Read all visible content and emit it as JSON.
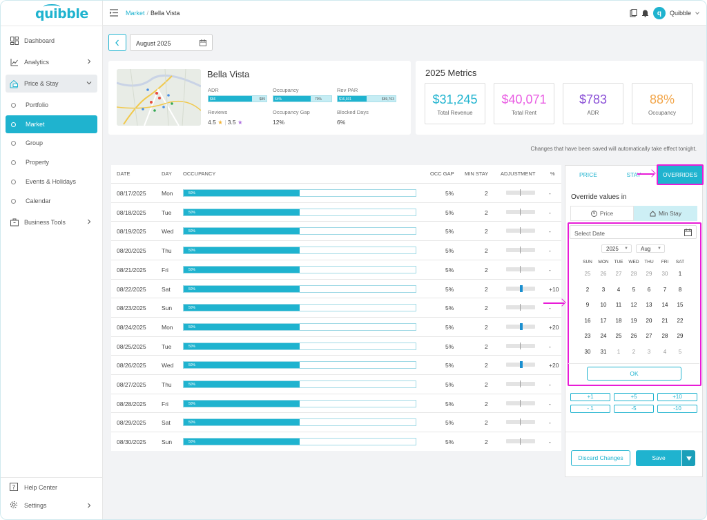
{
  "app": {
    "logo": "quibble"
  },
  "sidebar": {
    "items": [
      {
        "label": "Dashboard",
        "icon": "dashboard-icon"
      },
      {
        "label": "Analytics",
        "icon": "chart-icon"
      },
      {
        "label": "Price & Stay",
        "icon": "house-tag-icon"
      },
      {
        "label": "Portfolio"
      },
      {
        "label": "Market"
      },
      {
        "label": "Group"
      },
      {
        "label": "Property"
      },
      {
        "label": "Events & Holidays"
      },
      {
        "label": "Calendar"
      },
      {
        "label": "Business Tools",
        "icon": "briefcase-icon"
      }
    ],
    "help": "Help Center",
    "settings": "Settings"
  },
  "header": {
    "crumb_parent": "Market",
    "crumb_current": "Bella Vista",
    "user": "Quibble",
    "avatar_letter": "q"
  },
  "filters": {
    "month": "August 2025"
  },
  "property": {
    "name": "Bella Vista",
    "adr_label": "ADR",
    "adr_left": "$66",
    "adr_right": "$89",
    "adr_fill": 0.75,
    "occ_label": "Occupancy",
    "occ_left": "64%",
    "occ_right": "70%",
    "occ_fill": 0.64,
    "revpar_label": "Rev PAR",
    "revpar_left": "$16,931",
    "revpar_right": "$89,763",
    "revpar_fill": 0.5,
    "reviews_label": "Reviews",
    "reviews_a": "4.5",
    "reviews_b": "3.5",
    "gap_label": "Occupancy Gap",
    "gap_value": "12%",
    "blocked_label": "Blocked Days",
    "blocked_value": "6%"
  },
  "metrics": {
    "title": "2025 Metrics",
    "items": [
      {
        "value": "$31,245",
        "label": "Total Revenue",
        "color": "#1fb3cf"
      },
      {
        "value": "$40,071",
        "label": "Total Rent",
        "color": "#e95ce3"
      },
      {
        "value": "$783",
        "label": "ADR",
        "color": "#8a4fd6"
      },
      {
        "value": "88%",
        "label": "Occupancy",
        "color": "#f2a64b"
      }
    ]
  },
  "note": "Changes that have been saved will automatically take effect tonight.",
  "table": {
    "headers": {
      "date": "DATE",
      "day": "DAY",
      "occupancy": "OCCUPANCY",
      "gap": "OCC GAP",
      "minstay": "MIN STAY",
      "adjustment": "ADJUSTMENT",
      "pct": "%"
    },
    "rows": [
      {
        "date": "08/17/2025",
        "day": "Mon",
        "occ": "50%",
        "occ_fill": 0.5,
        "gap": "5%",
        "min": "2",
        "adj": 0,
        "pct": "-"
      },
      {
        "date": "08/18/2025",
        "day": "Tue",
        "occ": "50%",
        "occ_fill": 0.5,
        "gap": "5%",
        "min": "2",
        "adj": 0,
        "pct": "-"
      },
      {
        "date": "08/19/2025",
        "day": "Wed",
        "occ": "50%",
        "occ_fill": 0.5,
        "gap": "5%",
        "min": "2",
        "adj": 0,
        "pct": "-"
      },
      {
        "date": "08/20/2025",
        "day": "Thu",
        "occ": "50%",
        "occ_fill": 0.5,
        "gap": "5%",
        "min": "2",
        "adj": 0,
        "pct": "-"
      },
      {
        "date": "08/21/2025",
        "day": "Fri",
        "occ": "50%",
        "occ_fill": 0.5,
        "gap": "5%",
        "min": "2",
        "adj": 0,
        "pct": "-"
      },
      {
        "date": "08/22/2025",
        "day": "Sat",
        "occ": "50%",
        "occ_fill": 0.5,
        "gap": "5%",
        "min": "2",
        "adj": 10,
        "pct": "+10"
      },
      {
        "date": "08/23/2025",
        "day": "Sun",
        "occ": "50%",
        "occ_fill": 0.5,
        "gap": "5%",
        "min": "2",
        "adj": 0,
        "pct": "-"
      },
      {
        "date": "08/24/2025",
        "day": "Mon",
        "occ": "50%",
        "occ_fill": 0.5,
        "gap": "5%",
        "min": "2",
        "adj": 20,
        "pct": "+20"
      },
      {
        "date": "08/25/2025",
        "day": "Tue",
        "occ": "50%",
        "occ_fill": 0.5,
        "gap": "5%",
        "min": "2",
        "adj": 0,
        "pct": "-"
      },
      {
        "date": "08/26/2025",
        "day": "Wed",
        "occ": "50%",
        "occ_fill": 0.5,
        "gap": "5%",
        "min": "2",
        "adj": 20,
        "pct": "+20"
      },
      {
        "date": "08/27/2025",
        "day": "Thu",
        "occ": "50%",
        "occ_fill": 0.5,
        "gap": "5%",
        "min": "2",
        "adj": 0,
        "pct": "-"
      },
      {
        "date": "08/28/2025",
        "day": "Fri",
        "occ": "50%",
        "occ_fill": 0.5,
        "gap": "5%",
        "min": "2",
        "adj": 0,
        "pct": "-"
      },
      {
        "date": "08/29/2025",
        "day": "Sat",
        "occ": "50%",
        "occ_fill": 0.5,
        "gap": "5%",
        "min": "2",
        "adj": 0,
        "pct": "-"
      },
      {
        "date": "08/30/2025",
        "day": "Sun",
        "occ": "50%",
        "occ_fill": 0.5,
        "gap": "5%",
        "min": "2",
        "adj": 0,
        "pct": "-"
      }
    ]
  },
  "panel": {
    "tabs": [
      "PRICE",
      "STAY",
      "OVERRIDES"
    ],
    "override_title": "Override values in",
    "seg_price": "Price",
    "seg_minstay": "Min Stay",
    "date_placeholder": "Select Date",
    "year": "2025",
    "month": "Aug",
    "dow": [
      "SUN",
      "MON",
      "TUE",
      "WED",
      "THU",
      "FRI",
      "SAT"
    ],
    "weeks": [
      [
        "25",
        "26",
        "27",
        "28",
        "29",
        "30",
        "1"
      ],
      [
        "2",
        "3",
        "4",
        "5",
        "6",
        "7",
        "8"
      ],
      [
        "9",
        "10",
        "11",
        "12",
        "13",
        "14",
        "15"
      ],
      [
        "16",
        "17",
        "18",
        "19",
        "20",
        "21",
        "22"
      ],
      [
        "23",
        "24",
        "25",
        "26",
        "27",
        "28",
        "29"
      ],
      [
        "30",
        "31",
        "1",
        "2",
        "3",
        "4",
        "5"
      ]
    ],
    "muted": [
      [
        0,
        0
      ],
      [
        0,
        1
      ],
      [
        0,
        2
      ],
      [
        0,
        3
      ],
      [
        0,
        4
      ],
      [
        0,
        5
      ],
      [
        5,
        2
      ],
      [
        5,
        3
      ],
      [
        5,
        4
      ],
      [
        5,
        5
      ],
      [
        5,
        6
      ]
    ],
    "ok": "OK",
    "steps": [
      "+1",
      "+5",
      "+10",
      "- 1",
      "-5",
      "-10"
    ],
    "discard": "Discard Changes",
    "save": "Save"
  },
  "colors": {
    "accent": "#1fb3cf",
    "highlight": "#e81cd7"
  }
}
